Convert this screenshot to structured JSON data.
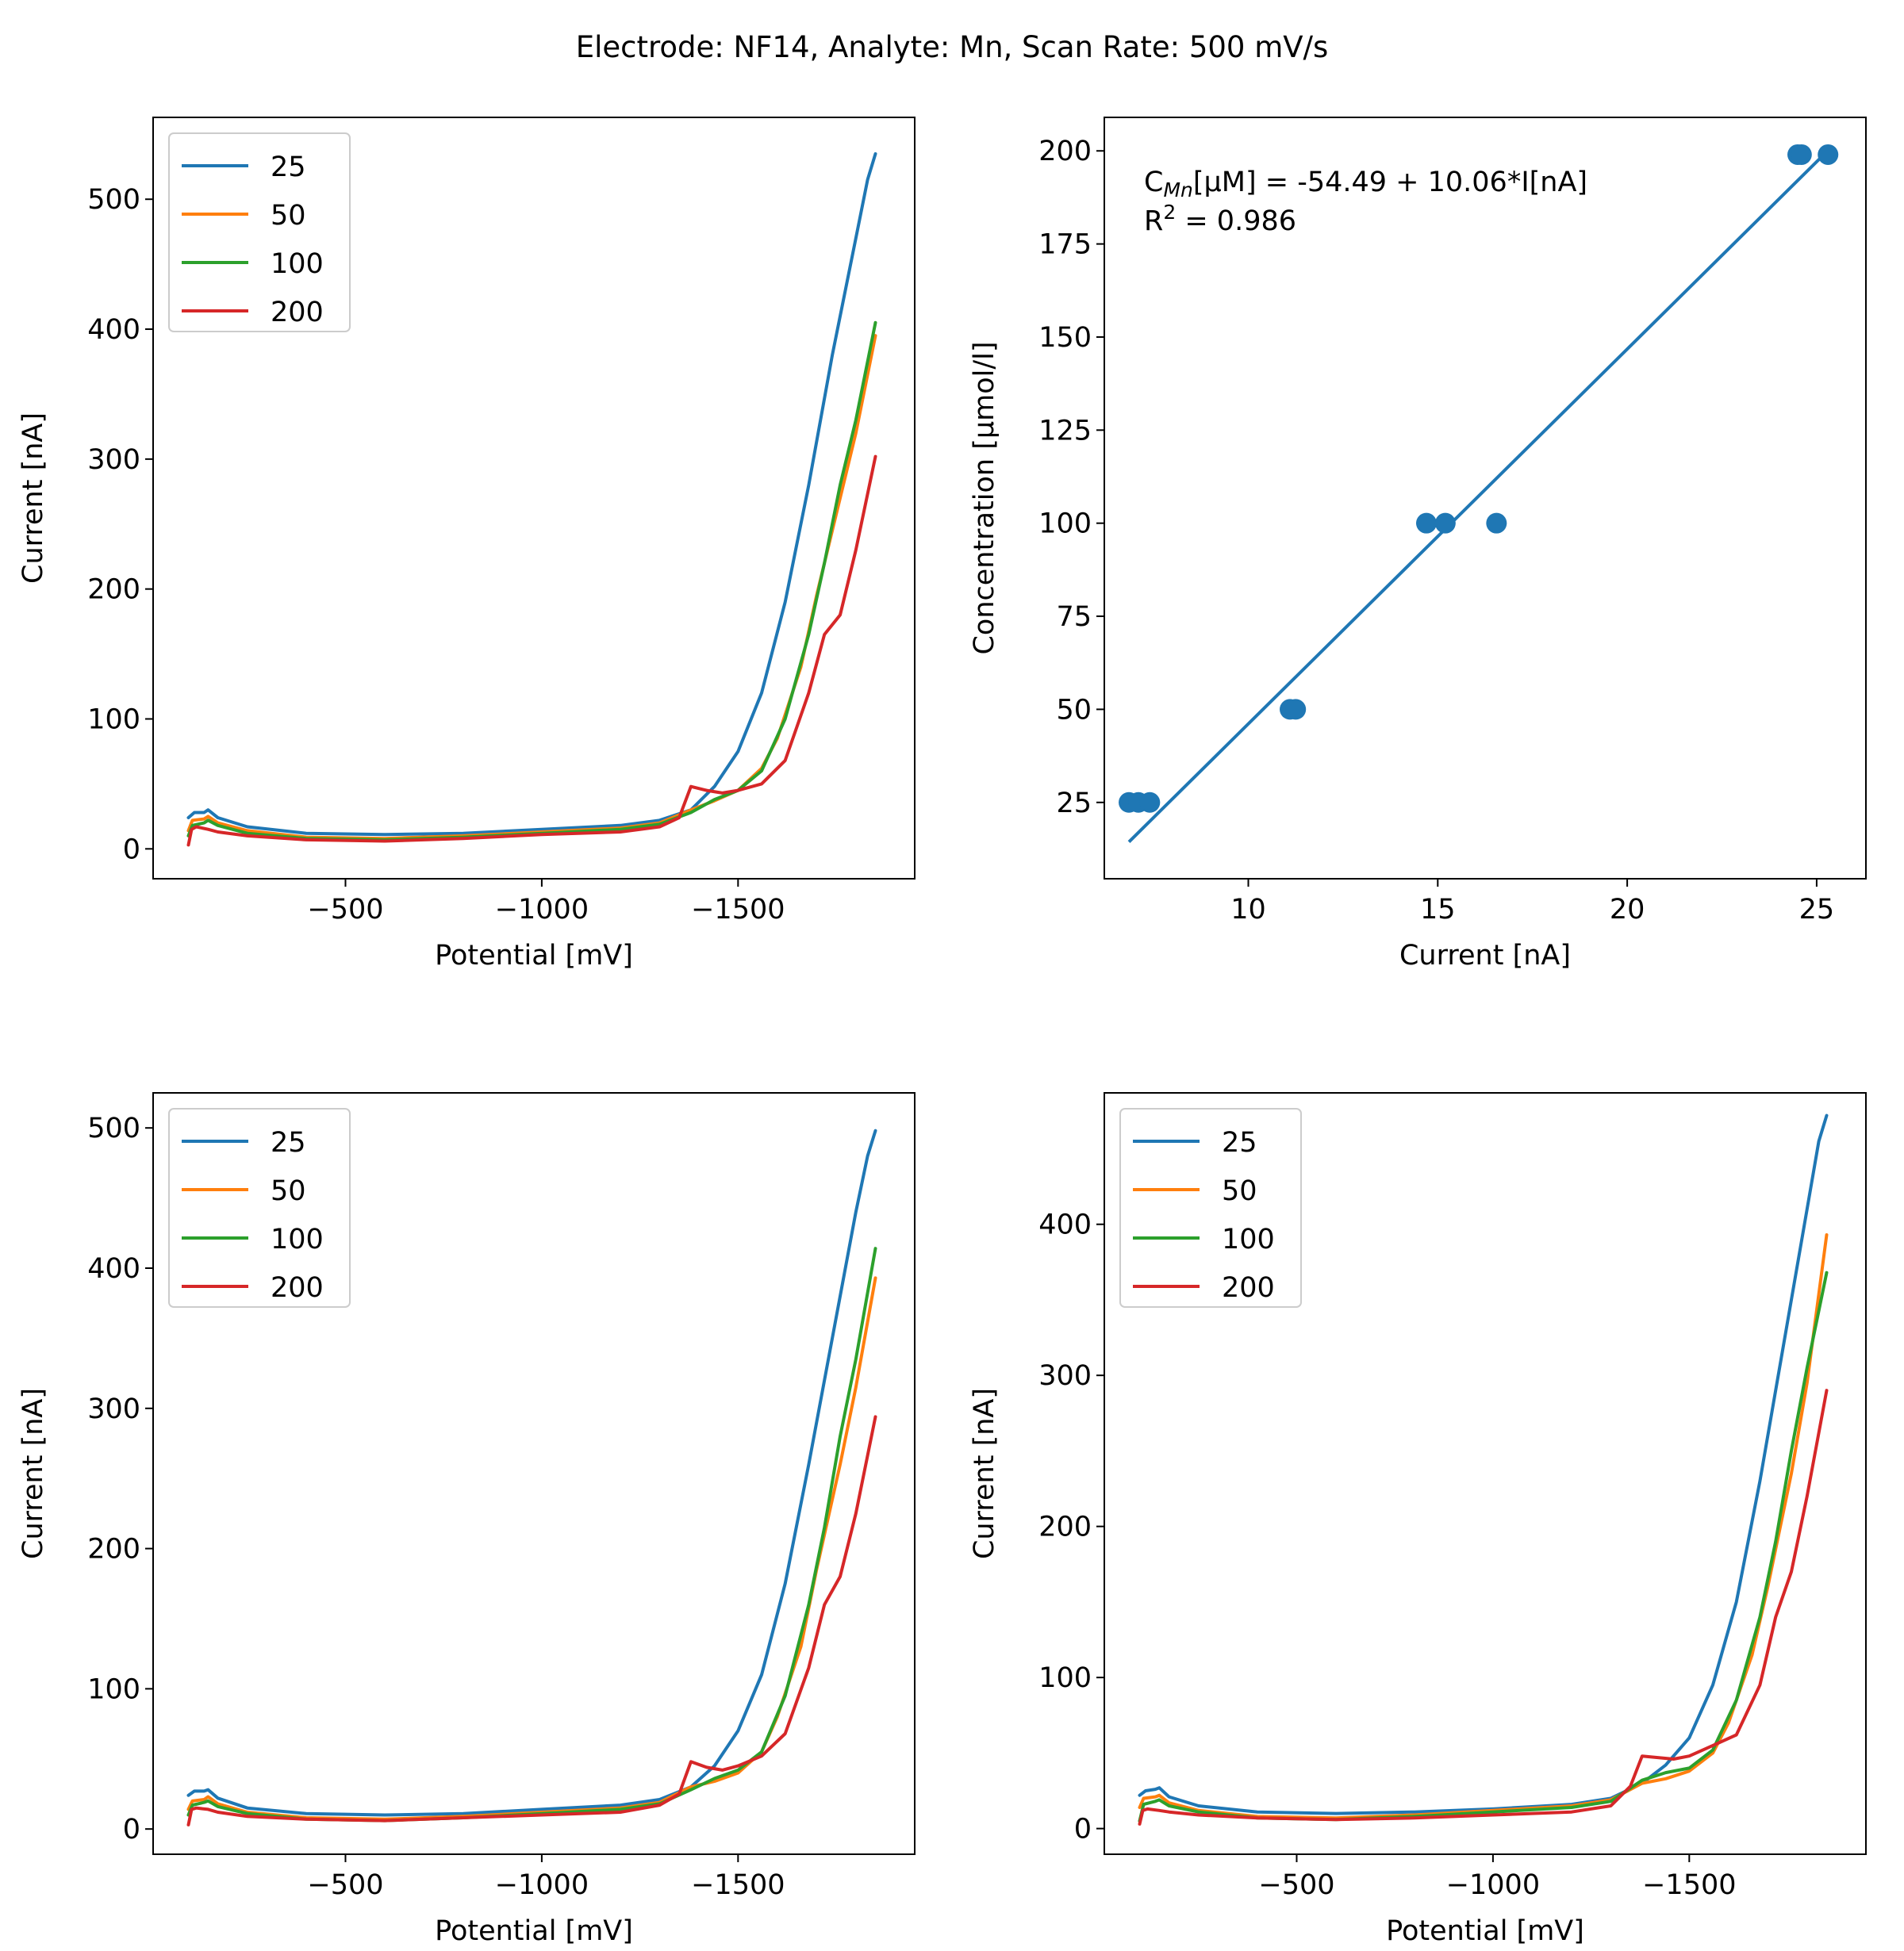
{
  "title": "Electrode: NF14, Analyte: Mn, Scan Rate: 500 mV/s",
  "chart_data": [
    {
      "type": "line",
      "panel": "top-left",
      "xlabel": "Potential [mV]",
      "ylabel": "Current [nA]",
      "xlim": [
        -10,
        -1950
      ],
      "ylim": [
        -23,
        563
      ],
      "xticks": [
        -500,
        -1000,
        -1500
      ],
      "xtick_labels": [
        "−500",
        "−1000",
        "−1500"
      ],
      "yticks": [
        0,
        100,
        200,
        300,
        400,
        500
      ],
      "legend": {
        "position": "upper-left",
        "entries": [
          "25",
          "50",
          "100",
          "200"
        ]
      },
      "series": [
        {
          "name": "25",
          "color": "#1f77b4",
          "x": [
            -100,
            -115,
            -140,
            -150,
            -175,
            -250,
            -400,
            -600,
            -800,
            -1000,
            -1200,
            -1300,
            -1380,
            -1440,
            -1500,
            -1560,
            -1620,
            -1680,
            -1740,
            -1800,
            -1830,
            -1850
          ],
          "y": [
            24,
            28,
            28,
            30,
            24,
            17,
            12,
            11,
            12,
            15,
            18,
            22,
            30,
            48,
            75,
            120,
            190,
            280,
            380,
            470,
            515,
            535
          ]
        },
        {
          "name": "50",
          "color": "#ff7f0e",
          "x": [
            -100,
            -110,
            -140,
            -150,
            -175,
            -250,
            -400,
            -600,
            -800,
            -1000,
            -1200,
            -1300,
            -1380,
            -1440,
            -1500,
            -1560,
            -1600,
            -1660,
            -1700,
            -1760,
            -1800,
            -1850
          ],
          "y": [
            14,
            22,
            23,
            25,
            20,
            14,
            9,
            8,
            10,
            13,
            16,
            20,
            30,
            37,
            45,
            62,
            85,
            140,
            195,
            270,
            320,
            395
          ]
        },
        {
          "name": "100",
          "color": "#2ca02c",
          "x": [
            -100,
            -110,
            -140,
            -150,
            -175,
            -250,
            -400,
            -600,
            -800,
            -1000,
            -1200,
            -1300,
            -1380,
            -1440,
            -1500,
            -1560,
            -1620,
            -1680,
            -1720,
            -1760,
            -1800,
            -1850
          ],
          "y": [
            10,
            18,
            20,
            22,
            18,
            12,
            8,
            7,
            9,
            12,
            15,
            19,
            28,
            38,
            45,
            60,
            100,
            165,
            220,
            280,
            330,
            405
          ]
        },
        {
          "name": "200",
          "color": "#d62728",
          "x": [
            -100,
            -108,
            -120,
            -150,
            -175,
            -250,
            -400,
            -600,
            -800,
            -1000,
            -1200,
            -1300,
            -1350,
            -1380,
            -1420,
            -1460,
            -1500,
            -1560,
            -1620,
            -1680,
            -1720,
            -1760,
            -1800,
            -1850
          ],
          "y": [
            3,
            15,
            17,
            15,
            13,
            10,
            7,
            6,
            8,
            11,
            13,
            17,
            24,
            48,
            45,
            43,
            45,
            50,
            68,
            120,
            165,
            180,
            230,
            302
          ]
        }
      ]
    },
    {
      "type": "scatter",
      "panel": "top-right",
      "xlabel": "Current [nA]",
      "ylabel": "Concentration [μmol/l]",
      "xlim": [
        6.2,
        26.3
      ],
      "ylim": [
        4.5,
        209
      ],
      "xticks": [
        10,
        15,
        20,
        25
      ],
      "yticks": [
        25,
        50,
        75,
        100,
        125,
        150,
        175,
        200
      ],
      "annotation": {
        "equation_prefix": "C",
        "equation_subscript": "Mn",
        "equation_rest": "[μM] = -54.49 + 10.06*I[nA]",
        "r2_prefix": "R",
        "r2_sup": "2",
        "r2_rest": " = 0.986"
      },
      "points": [
        {
          "x": 6.85,
          "y": 25
        },
        {
          "x": 7.1,
          "y": 25
        },
        {
          "x": 7.4,
          "y": 25
        },
        {
          "x": 11.1,
          "y": 50
        },
        {
          "x": 11.25,
          "y": 50
        },
        {
          "x": 14.7,
          "y": 100
        },
        {
          "x": 15.2,
          "y": 100
        },
        {
          "x": 16.55,
          "y": 100
        },
        {
          "x": 24.5,
          "y": 199
        },
        {
          "x": 24.6,
          "y": 199
        },
        {
          "x": 25.3,
          "y": 199
        }
      ],
      "fit_line": {
        "x": [
          6.85,
          25.2
        ],
        "y": [
          14.4,
          199.1
        ]
      },
      "color": "#1f77b4"
    },
    {
      "type": "line",
      "panel": "bottom-left",
      "xlabel": "Potential [mV]",
      "ylabel": "Current [nA]",
      "xlim": [
        -10,
        -1950
      ],
      "ylim": [
        -18,
        525
      ],
      "xticks": [
        -500,
        -1000,
        -1500
      ],
      "xtick_labels": [
        "−500",
        "−1000",
        "−1500"
      ],
      "yticks": [
        0,
        100,
        200,
        300,
        400,
        500
      ],
      "legend": {
        "position": "upper-left",
        "entries": [
          "25",
          "50",
          "100",
          "200"
        ]
      },
      "series": [
        {
          "name": "25",
          "color": "#1f77b4",
          "x": [
            -100,
            -115,
            -140,
            -150,
            -175,
            -250,
            -400,
            -600,
            -800,
            -1000,
            -1200,
            -1300,
            -1380,
            -1440,
            -1500,
            -1560,
            -1620,
            -1680,
            -1740,
            -1800,
            -1830,
            -1850
          ],
          "y": [
            24,
            27,
            27,
            28,
            22,
            15,
            11,
            10,
            11,
            14,
            17,
            21,
            30,
            45,
            70,
            110,
            175,
            260,
            350,
            440,
            480,
            498
          ]
        },
        {
          "name": "50",
          "color": "#ff7f0e",
          "x": [
            -100,
            -110,
            -140,
            -150,
            -175,
            -250,
            -400,
            -600,
            -800,
            -1000,
            -1200,
            -1300,
            -1380,
            -1440,
            -1500,
            -1560,
            -1600,
            -1660,
            -1700,
            -1760,
            -1800,
            -1850
          ],
          "y": [
            14,
            20,
            21,
            23,
            18,
            12,
            8,
            7,
            9,
            12,
            15,
            19,
            30,
            34,
            40,
            55,
            80,
            130,
            185,
            260,
            315,
            393
          ]
        },
        {
          "name": "100",
          "color": "#2ca02c",
          "x": [
            -100,
            -110,
            -140,
            -150,
            -175,
            -250,
            -400,
            -600,
            -800,
            -1000,
            -1200,
            -1300,
            -1380,
            -1440,
            -1500,
            -1560,
            -1620,
            -1680,
            -1720,
            -1760,
            -1800,
            -1850
          ],
          "y": [
            10,
            17,
            19,
            20,
            16,
            11,
            7,
            6,
            8,
            11,
            14,
            18,
            28,
            36,
            42,
            55,
            95,
            160,
            215,
            280,
            335,
            414
          ]
        },
        {
          "name": "200",
          "color": "#d62728",
          "x": [
            -100,
            -108,
            -120,
            -150,
            -175,
            -250,
            -400,
            -600,
            -800,
            -1000,
            -1200,
            -1300,
            -1350,
            -1380,
            -1420,
            -1460,
            -1500,
            -1560,
            -1620,
            -1680,
            -1720,
            -1760,
            -1800,
            -1850
          ],
          "y": [
            3,
            14,
            15,
            14,
            12,
            9,
            7,
            6,
            8,
            10,
            12,
            17,
            25,
            48,
            44,
            42,
            45,
            52,
            68,
            115,
            160,
            180,
            225,
            294
          ]
        }
      ]
    },
    {
      "type": "line",
      "panel": "bottom-right",
      "xlabel": "Potential [mV]",
      "ylabel": "Current [nA]",
      "xlim": [
        -10,
        -1950
      ],
      "ylim": [
        -17,
        487
      ],
      "xticks": [
        -500,
        -1000,
        -1500
      ],
      "xtick_labels": [
        "−500",
        "−1000",
        "−1500"
      ],
      "yticks": [
        0,
        100,
        200,
        300,
        400
      ],
      "legend": {
        "position": "upper-left",
        "entries": [
          "25",
          "50",
          "100",
          "200"
        ]
      },
      "series": [
        {
          "name": "25",
          "color": "#1f77b4",
          "x": [
            -100,
            -115,
            -140,
            -150,
            -175,
            -250,
            -400,
            -600,
            -800,
            -1000,
            -1200,
            -1300,
            -1380,
            -1440,
            -1500,
            -1560,
            -1620,
            -1680,
            -1740,
            -1800,
            -1830,
            -1850
          ],
          "y": [
            22,
            25,
            26,
            27,
            21,
            15,
            11,
            10,
            11,
            13,
            16,
            20,
            30,
            42,
            60,
            95,
            150,
            230,
            320,
            410,
            455,
            472
          ]
        },
        {
          "name": "50",
          "color": "#ff7f0e",
          "x": [
            -100,
            -110,
            -140,
            -150,
            -175,
            -250,
            -400,
            -600,
            -800,
            -1000,
            -1200,
            -1300,
            -1380,
            -1440,
            -1500,
            -1560,
            -1600,
            -1660,
            -1700,
            -1760,
            -1800,
            -1850
          ],
          "y": [
            14,
            20,
            21,
            22,
            17,
            12,
            8,
            7,
            9,
            12,
            15,
            19,
            30,
            33,
            38,
            50,
            70,
            115,
            160,
            235,
            295,
            393
          ]
        },
        {
          "name": "100",
          "color": "#2ca02c",
          "x": [
            -100,
            -110,
            -140,
            -150,
            -175,
            -250,
            -400,
            -600,
            -800,
            -1000,
            -1200,
            -1300,
            -1380,
            -1440,
            -1500,
            -1560,
            -1620,
            -1680,
            -1720,
            -1760,
            -1800,
            -1850
          ],
          "y": [
            5,
            16,
            18,
            19,
            15,
            11,
            7,
            6,
            8,
            11,
            14,
            18,
            32,
            37,
            40,
            52,
            85,
            140,
            190,
            250,
            305,
            368
          ]
        },
        {
          "name": "200",
          "color": "#d62728",
          "x": [
            -100,
            -108,
            -120,
            -150,
            -175,
            -250,
            -400,
            -600,
            -800,
            -1000,
            -1200,
            -1300,
            -1350,
            -1380,
            -1420,
            -1460,
            -1500,
            -1560,
            -1620,
            -1680,
            -1720,
            -1760,
            -1800,
            -1850
          ],
          "y": [
            3,
            12,
            13,
            12,
            11,
            9,
            7,
            6,
            7,
            9,
            11,
            15,
            28,
            48,
            47,
            46,
            48,
            55,
            62,
            95,
            140,
            170,
            220,
            290
          ]
        }
      ]
    }
  ]
}
